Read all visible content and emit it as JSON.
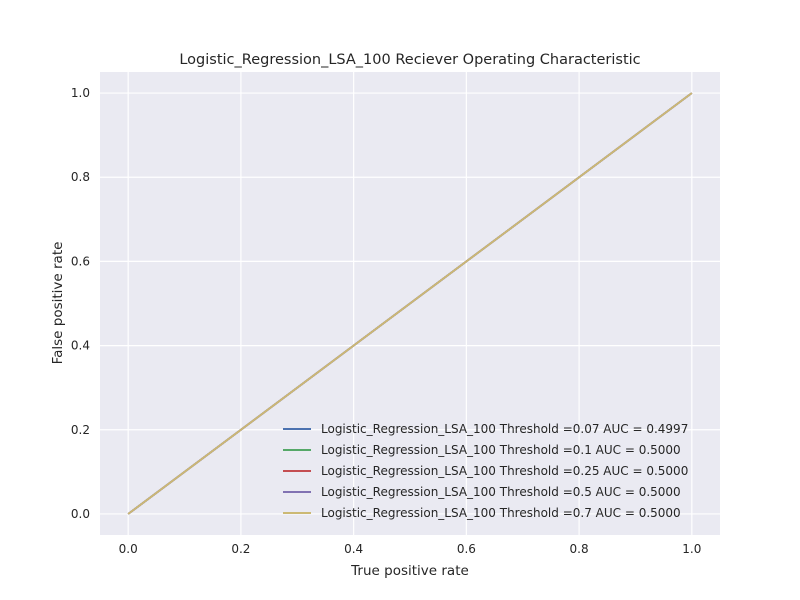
{
  "chart_data": {
    "type": "line",
    "title": "Logistic_Regression_LSA_100 Reciever Operating Characteristic",
    "xlabel": "True positive rate",
    "ylabel": "False positive rate",
    "xlim": [
      -0.05,
      1.05
    ],
    "ylim": [
      -0.05,
      1.05
    ],
    "xticks": [
      "0.0",
      "0.2",
      "0.4",
      "0.6",
      "0.8",
      "1.0"
    ],
    "yticks": [
      "0.0",
      "0.2",
      "0.4",
      "0.6",
      "0.8",
      "1.0"
    ],
    "grid": true,
    "legend_position": "lower-right",
    "series": [
      {
        "name": "Logistic_Regression_LSA_100 Threshold =0.07 AUC = 0.4997",
        "color": "#4c72b0",
        "x": [
          0,
          1
        ],
        "y": [
          0,
          1
        ]
      },
      {
        "name": "Logistic_Regression_LSA_100 Threshold =0.1 AUC = 0.5000",
        "color": "#55a868",
        "x": [
          0,
          1
        ],
        "y": [
          0,
          1
        ]
      },
      {
        "name": "Logistic_Regression_LSA_100 Threshold =0.25 AUC = 0.5000",
        "color": "#c44e52",
        "x": [
          0,
          1
        ],
        "y": [
          0,
          1
        ]
      },
      {
        "name": "Logistic_Regression_LSA_100 Threshold =0.5 AUC = 0.5000",
        "color": "#8172b2",
        "x": [
          0,
          1
        ],
        "y": [
          0,
          1
        ]
      },
      {
        "name": "Logistic_Regression_LSA_100 Threshold =0.7 AUC = 0.5000",
        "color": "#ccb974",
        "x": [
          0,
          1
        ],
        "y": [
          0,
          1
        ]
      }
    ]
  },
  "colors": {
    "plot_background": "#eaeaf2",
    "grid": "#ffffff"
  }
}
